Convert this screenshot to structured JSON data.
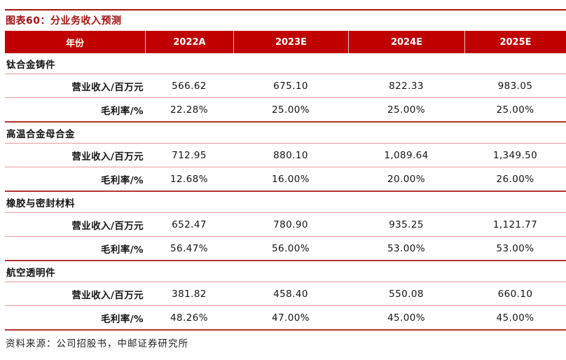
{
  "figure": {
    "title": "图表60：分业务收入预测"
  },
  "table": {
    "columns": [
      "年份",
      "2022A",
      "2023E",
      "2024E",
      "2025E"
    ],
    "sections": [
      {
        "name": "钛合金铸件",
        "rows": [
          {
            "label": "营业收入/百万元",
            "values": [
              "566.62",
              "675.10",
              "822.33",
              "983.05"
            ]
          },
          {
            "label": "毛利率/%",
            "values": [
              "22.28%",
              "25.00%",
              "25.00%",
              "25.00%"
            ]
          }
        ]
      },
      {
        "name": "高温合金母合金",
        "rows": [
          {
            "label": "营业收入/百万元",
            "values": [
              "712.95",
              "880.10",
              "1,089.64",
              "1,349.50"
            ]
          },
          {
            "label": "毛利率/%",
            "values": [
              "12.68%",
              "16.00%",
              "20.00%",
              "26.00%"
            ]
          }
        ]
      },
      {
        "name": "橡胶与密封材料",
        "rows": [
          {
            "label": "营业收入/百万元",
            "values": [
              "652.47",
              "780.90",
              "935.25",
              "1,121.77"
            ]
          },
          {
            "label": "毛利率/%",
            "values": [
              "56.47%",
              "56.00%",
              "53.00%",
              "53.00%"
            ]
          }
        ]
      },
      {
        "name": "航空透明件",
        "rows": [
          {
            "label": "营业收入/百万元",
            "values": [
              "381.82",
              "458.40",
              "550.08",
              "660.10"
            ]
          },
          {
            "label": "毛利率/%",
            "values": [
              "48.26%",
              "47.00%",
              "45.00%",
              "45.00%"
            ]
          }
        ]
      }
    ]
  },
  "footer": {
    "source": "资料来源：公司招股书，中邮证券研究所"
  },
  "colors": {
    "header_bg": "#C00000",
    "title_text": "#A01313",
    "top_rule": "#A31414",
    "row_line_light": "#E59A9A",
    "section_line_dark": "#B53333",
    "body_text": "#141414"
  }
}
